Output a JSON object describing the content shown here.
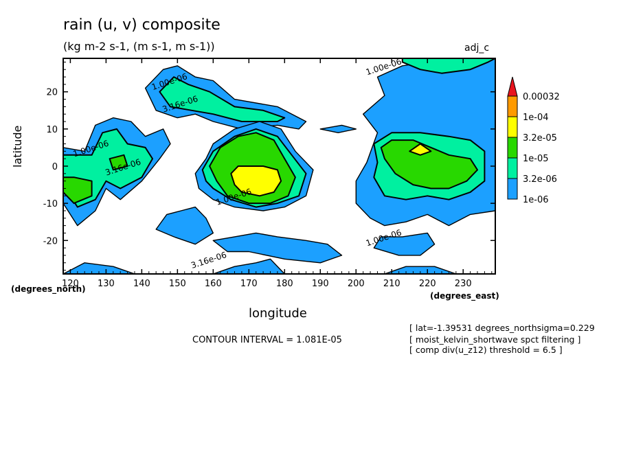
{
  "header": {
    "title": "rain (u, v) composite",
    "subtitle": "(kg m-2 s-1, (m s-1, m s-1))",
    "corner_label": "adj_c"
  },
  "footer": {
    "contour_interval": "CONTOUR INTERVAL = 1.081E-05",
    "notes": [
      "[ lat=-1.39531 degrees_northsigma=0.229",
      "[ moist_kelvin_shortwave spct filtering ]",
      "[ comp div(u_z12) threshold = 6.5 ]"
    ]
  },
  "chart_data": {
    "type": "contour",
    "title": "rain (u, v) composite",
    "units": "(kg m-2 s-1, (m s-1, m s-1))",
    "xlabel": "longitude",
    "ylabel": "latitude",
    "x_units": "(degrees_east)",
    "y_units": "(degrees_north)",
    "xlim": [
      118,
      239
    ],
    "ylim": [
      -29,
      29
    ],
    "x_ticks": [
      120,
      130,
      140,
      150,
      160,
      170,
      180,
      190,
      200,
      210,
      220,
      230
    ],
    "y_ticks": [
      -20,
      -10,
      0,
      10,
      20
    ],
    "legend": {
      "placement": "right",
      "levels": [
        "1e-06",
        "3.2e-06",
        "1e-05",
        "3.2e-05",
        "1e-04",
        "0.00032"
      ],
      "colors": [
        "#1ca0ff",
        "#00f0a0",
        "#28d800",
        "#ffff00",
        "#ff9a00",
        "#e8141e"
      ]
    },
    "contour_labels": [
      {
        "text": "1.00e-06",
        "x": 208,
        "y": 26
      },
      {
        "text": "1.00e-06",
        "x": 148,
        "y": 22
      },
      {
        "text": "3.16e-06",
        "x": 151,
        "y": 16
      },
      {
        "text": "1.00e-06",
        "x": 126,
        "y": 4
      },
      {
        "text": "3.16e-06",
        "x": 135,
        "y": -1
      },
      {
        "text": "1.00e-06",
        "x": 166,
        "y": -9
      },
      {
        "text": "1.00e-06",
        "x": 208,
        "y": -20
      },
      {
        "text": "3.16e-06",
        "x": 159,
        "y": -26
      }
    ],
    "regions": [
      {
        "level": 0,
        "points": [
          [
            118,
            -10
          ],
          [
            122,
            -16
          ],
          [
            127,
            -12
          ],
          [
            130,
            -6
          ],
          [
            134,
            -9
          ],
          [
            140,
            -4
          ],
          [
            145,
            2
          ],
          [
            148,
            6
          ],
          [
            146,
            10
          ],
          [
            141,
            8
          ],
          [
            137,
            12
          ],
          [
            132,
            13
          ],
          [
            127,
            11
          ],
          [
            124,
            4
          ],
          [
            118,
            5
          ]
        ]
      },
      {
        "level": 1,
        "points": [
          [
            118,
            -5
          ],
          [
            122,
            -11
          ],
          [
            127,
            -9
          ],
          [
            130,
            -4
          ],
          [
            134,
            -6
          ],
          [
            140,
            -3
          ],
          [
            143,
            2
          ],
          [
            141,
            5
          ],
          [
            136,
            6
          ],
          [
            133,
            10
          ],
          [
            129,
            9
          ],
          [
            126,
            3
          ],
          [
            118,
            3
          ]
        ]
      },
      {
        "level": 2,
        "points": [
          [
            118,
            -7
          ],
          [
            121,
            -10
          ],
          [
            126,
            -8
          ],
          [
            126,
            -4
          ],
          [
            121,
            -3
          ],
          [
            118,
            -3
          ]
        ]
      },
      {
        "level": 2,
        "points": [
          [
            132,
            -1
          ],
          [
            136,
            0
          ],
          [
            135,
            3
          ],
          [
            131,
            2
          ]
        ]
      },
      {
        "level": 0,
        "points": [
          [
            141,
            21
          ],
          [
            146,
            26
          ],
          [
            150,
            27
          ],
          [
            155,
            24
          ],
          [
            160,
            23
          ],
          [
            166,
            18
          ],
          [
            178,
            16
          ],
          [
            186,
            12
          ],
          [
            184,
            10
          ],
          [
            178,
            11
          ],
          [
            168,
            10
          ],
          [
            160,
            12
          ],
          [
            155,
            14
          ],
          [
            150,
            13
          ],
          [
            144,
            15
          ]
        ]
      },
      {
        "level": 1,
        "points": [
          [
            145,
            20
          ],
          [
            149,
            24
          ],
          [
            153,
            22
          ],
          [
            159,
            20
          ],
          [
            166,
            16
          ],
          [
            174,
            15
          ],
          [
            180,
            13
          ],
          [
            178,
            12
          ],
          [
            168,
            12
          ],
          [
            160,
            14
          ],
          [
            154,
            15
          ],
          [
            148,
            16
          ]
        ]
      },
      {
        "level": 0,
        "points": [
          [
            155,
            -2
          ],
          [
            158,
            2
          ],
          [
            160,
            6
          ],
          [
            166,
            10
          ],
          [
            173,
            12
          ],
          [
            179,
            10
          ],
          [
            183,
            4
          ],
          [
            188,
            -1
          ],
          [
            186,
            -8
          ],
          [
            180,
            -11
          ],
          [
            174,
            -12
          ],
          [
            166,
            -11
          ],
          [
            160,
            -9
          ],
          [
            156,
            -6
          ]
        ]
      },
      {
        "level": 1,
        "points": [
          [
            157,
            -1
          ],
          [
            160,
            4
          ],
          [
            166,
            8
          ],
          [
            172,
            10
          ],
          [
            178,
            8
          ],
          [
            182,
            3
          ],
          [
            186,
            -2
          ],
          [
            184,
            -8
          ],
          [
            178,
            -10
          ],
          [
            172,
            -11
          ],
          [
            165,
            -9
          ],
          [
            160,
            -6
          ],
          [
            158,
            -4
          ]
        ]
      },
      {
        "level": 2,
        "points": [
          [
            159,
            0
          ],
          [
            162,
            5
          ],
          [
            167,
            8
          ],
          [
            172,
            9
          ],
          [
            177,
            7
          ],
          [
            180,
            2
          ],
          [
            183,
            -3
          ],
          [
            181,
            -8
          ],
          [
            176,
            -10
          ],
          [
            170,
            -10
          ],
          [
            164,
            -8
          ],
          [
            161,
            -4
          ]
        ]
      },
      {
        "level": 3,
        "points": [
          [
            165,
            -2
          ],
          [
            167,
            0
          ],
          [
            170,
            0
          ],
          [
            174,
            0
          ],
          [
            178,
            -1
          ],
          [
            179,
            -4
          ],
          [
            177,
            -7
          ],
          [
            173,
            -8
          ],
          [
            168,
            -7
          ],
          [
            166,
            -5
          ]
        ]
      },
      {
        "level": 0,
        "points": [
          [
            144,
            -17
          ],
          [
            147,
            -13
          ],
          [
            151,
            -12
          ],
          [
            155,
            -11
          ],
          [
            158,
            -14
          ],
          [
            160,
            -18
          ],
          [
            155,
            -21
          ],
          [
            149,
            -19
          ]
        ]
      },
      {
        "level": 0,
        "points": [
          [
            160,
            -20
          ],
          [
            166,
            -19
          ],
          [
            172,
            -18
          ],
          [
            178,
            -19
          ],
          [
            186,
            -20
          ],
          [
            192,
            -21
          ],
          [
            196,
            -24
          ],
          [
            190,
            -26
          ],
          [
            180,
            -25
          ],
          [
            170,
            -23
          ],
          [
            164,
            -23
          ]
        ]
      },
      {
        "level": 0,
        "points": [
          [
            160,
            -29
          ],
          [
            166,
            -27
          ],
          [
            172,
            -26
          ],
          [
            176,
            -25
          ],
          [
            180,
            -29
          ]
        ]
      },
      {
        "level": 0,
        "points": [
          [
            118,
            -29
          ],
          [
            124,
            -26
          ],
          [
            132,
            -27
          ],
          [
            138,
            -29
          ]
        ]
      },
      {
        "level": 0,
        "points": [
          [
            190,
            10
          ],
          [
            196,
            11
          ],
          [
            200,
            10
          ],
          [
            195,
            9
          ]
        ]
      },
      {
        "level": 0,
        "points": [
          [
            200,
            -10
          ],
          [
            204,
            -14
          ],
          [
            208,
            -16
          ],
          [
            214,
            -15
          ],
          [
            220,
            -13
          ],
          [
            226,
            -16
          ],
          [
            232,
            -13
          ],
          [
            239,
            -12
          ],
          [
            239,
            29
          ],
          [
            232,
            29
          ],
          [
            226,
            27
          ],
          [
            220,
            28
          ],
          [
            213,
            27
          ],
          [
            206,
            24
          ],
          [
            208,
            19
          ],
          [
            202,
            14
          ],
          [
            206,
            9
          ],
          [
            203,
            1
          ],
          [
            200,
            -4
          ]
        ]
      },
      {
        "level": 1,
        "points": [
          [
            205,
            -3
          ],
          [
            208,
            -8
          ],
          [
            214,
            -9
          ],
          [
            220,
            -8
          ],
          [
            226,
            -9
          ],
          [
            232,
            -7
          ],
          [
            236,
            -4
          ],
          [
            236,
            4
          ],
          [
            232,
            7
          ],
          [
            226,
            8
          ],
          [
            218,
            9
          ],
          [
            210,
            9
          ],
          [
            205,
            6
          ],
          [
            206,
            1
          ]
        ]
      },
      {
        "level": 1,
        "points": [
          [
            213,
            28
          ],
          [
            218,
            26
          ],
          [
            224,
            25
          ],
          [
            232,
            26
          ],
          [
            237,
            28
          ],
          [
            239,
            29
          ],
          [
            213,
            29
          ]
        ]
      },
      {
        "level": 2,
        "points": [
          [
            208,
            2
          ],
          [
            211,
            -2
          ],
          [
            216,
            -5
          ],
          [
            221,
            -6
          ],
          [
            226,
            -6
          ],
          [
            231,
            -4
          ],
          [
            234,
            -1
          ],
          [
            232,
            2
          ],
          [
            226,
            3
          ],
          [
            221,
            5
          ],
          [
            216,
            7
          ],
          [
            210,
            7
          ],
          [
            207,
            5
          ]
        ]
      },
      {
        "level": 3,
        "points": [
          [
            215,
            4
          ],
          [
            218,
            3
          ],
          [
            221,
            4
          ],
          [
            218,
            6
          ]
        ]
      },
      {
        "level": 0,
        "points": [
          [
            205,
            -22
          ],
          [
            212,
            -24
          ],
          [
            218,
            -24
          ],
          [
            222,
            -21
          ],
          [
            220,
            -18
          ],
          [
            213,
            -19
          ],
          [
            207,
            -19
          ]
        ]
      },
      {
        "level": 0,
        "points": [
          [
            208,
            -29
          ],
          [
            214,
            -27
          ],
          [
            222,
            -27
          ],
          [
            228,
            -29
          ]
        ]
      }
    ],
    "vector_field": {
      "present": false
    }
  }
}
